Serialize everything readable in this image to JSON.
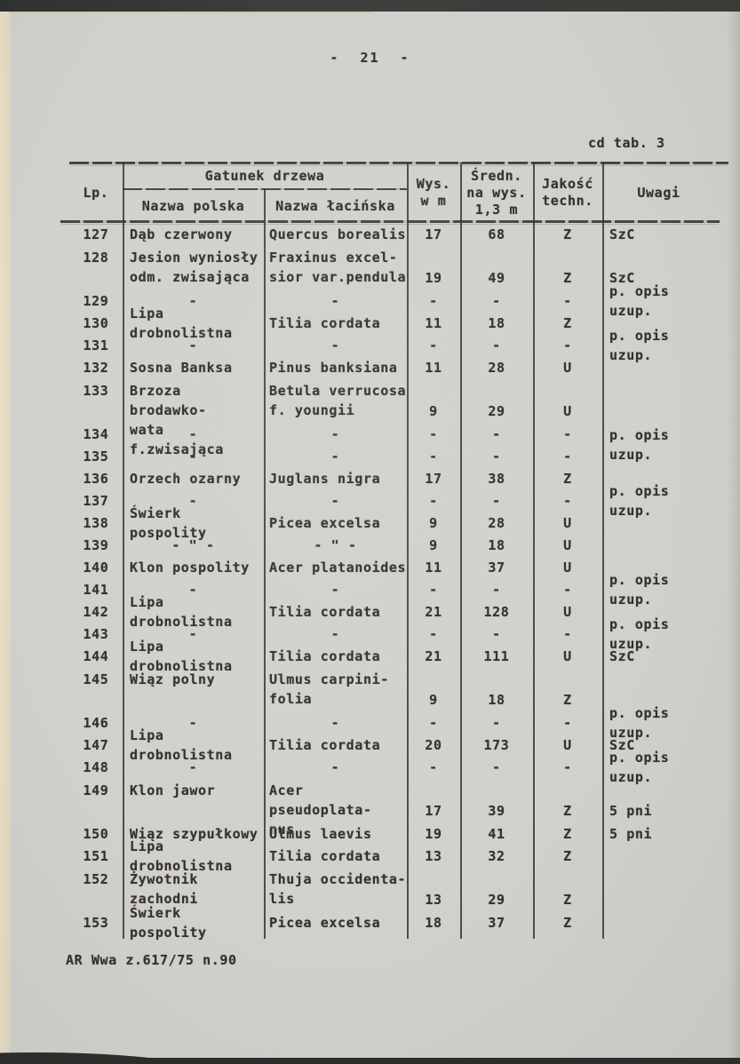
{
  "page": {
    "number_label": "- 21 -",
    "table_caption": "cd tab. 3",
    "footer": "AR Wwa z.617/75 n.90"
  },
  "colors": {
    "paper": "#d3d2ce",
    "ink": "#34312b",
    "edge_cream": "#e9e1c6",
    "scan_border": "#323130"
  },
  "table": {
    "headers": {
      "lp": "Lp.",
      "group": "Gatunek drzewa",
      "polish": "Nazwa polska",
      "latin": "Nazwa łacińska",
      "height": [
        "Wys.",
        "w m"
      ],
      "diameter": [
        "Średn.",
        "na wys.",
        "1,3 m"
      ],
      "quality": [
        "Jakość",
        "techn."
      ],
      "notes": "Uwagi"
    },
    "rows": [
      {
        "lp": "127",
        "polish": "Dąb czerwony",
        "latin": "Quercus borealis",
        "wys": "17",
        "sredn": "68",
        "jakosc": "Z",
        "uwagi": "SzC"
      },
      {
        "lp": "128",
        "polish": "Jesion wyniosły\nodm. zwisająca",
        "latin": "Fraxinus excel-\nsior var.pendula",
        "wys": "19",
        "sredn": "49",
        "jakosc": "Z",
        "uwagi": "SzC",
        "tall": true
      },
      {
        "lp": "129",
        "polish": "-",
        "latin": "-",
        "wys": "-",
        "sredn": "-",
        "jakosc": "-",
        "uwagi": "p. opis uzup."
      },
      {
        "lp": "130",
        "polish": "Lipa drobnolistna",
        "latin": "Tilia cordata",
        "wys": "11",
        "sredn": "18",
        "jakosc": "Z",
        "uwagi": ""
      },
      {
        "lp": "131",
        "polish": "-",
        "latin": "-",
        "wys": "-",
        "sredn": "-",
        "jakosc": "-",
        "uwagi": "p. opis uzup."
      },
      {
        "lp": "132",
        "polish": "Sosna Banksa",
        "latin": "Pinus banksiana",
        "wys": "11",
        "sredn": "28",
        "jakosc": "U",
        "uwagi": ""
      },
      {
        "lp": "133",
        "polish": "Brzoza brodawko-\nwata f.zwisająca",
        "latin": "Betula verrucosa\nf. youngii",
        "wys": "9",
        "sredn": "29",
        "jakosc": "U",
        "uwagi": "",
        "tall": true
      },
      {
        "lp": "134",
        "polish": "-",
        "latin": "-",
        "wys": "-",
        "sredn": "-",
        "jakosc": "-",
        "uwagi": "p. opis uzup.",
        "uwagi_span": 2
      },
      {
        "lp": "135",
        "polish": "-",
        "latin": "-",
        "wys": "-",
        "sredn": "-",
        "jakosc": "-",
        "uwagi": null
      },
      {
        "lp": "136",
        "polish": "Orzech ozarny",
        "latin": "Juglans nigra",
        "wys": "17",
        "sredn": "38",
        "jakosc": "Z",
        "uwagi": ""
      },
      {
        "lp": "137",
        "polish": "-",
        "latin": "-",
        "wys": "-",
        "sredn": "-",
        "jakosc": "-",
        "uwagi": "p. opis uzup."
      },
      {
        "lp": "138",
        "polish": "Świerk pospolity",
        "latin": "Picea excelsa",
        "wys": "9",
        "sredn": "28",
        "jakosc": "U",
        "uwagi": ""
      },
      {
        "lp": "139",
        "polish": "- \" -",
        "latin": "- \" -",
        "wys": "9",
        "sredn": "18",
        "jakosc": "U",
        "uwagi": ""
      },
      {
        "lp": "140",
        "polish": "Klon pospolity",
        "latin": "Acer platanoides",
        "wys": "11",
        "sredn": "37",
        "jakosc": "U",
        "uwagi": ""
      },
      {
        "lp": "141",
        "polish": "-",
        "latin": "-",
        "wys": "-",
        "sredn": "-",
        "jakosc": "-",
        "uwagi": "p. opis uzup."
      },
      {
        "lp": "142",
        "polish": "Lipa drobnolistna",
        "latin": "Tilia cordata",
        "wys": "21",
        "sredn": "128",
        "jakosc": "U",
        "uwagi": ""
      },
      {
        "lp": "143",
        "polish": "-",
        "latin": "-",
        "wys": "-",
        "sredn": "-",
        "jakosc": "-",
        "uwagi": "p. opis uzup."
      },
      {
        "lp": "144",
        "polish": "Lipa drobnolistna",
        "latin": "Tilia cordata",
        "wys": "21",
        "sredn": "111",
        "jakosc": "U",
        "uwagi": "SzC"
      },
      {
        "lp": "145",
        "polish": "Wiąz polny",
        "latin": "Ulmus carpini-\nfolia",
        "wys": "9",
        "sredn": "18",
        "jakosc": "Z",
        "uwagi": "",
        "tall": true
      },
      {
        "lp": "146",
        "polish": "-",
        "latin": "-",
        "wys": "-",
        "sredn": "-",
        "jakosc": "-",
        "uwagi": "p. opis uzup."
      },
      {
        "lp": "147",
        "polish": "Lipa drobnolistna",
        "latin": "Tilia cordata",
        "wys": "20",
        "sredn": "173",
        "jakosc": "U",
        "uwagi": "SzC"
      },
      {
        "lp": "148",
        "polish": "-",
        "latin": "-",
        "wys": "-",
        "sredn": "-",
        "jakosc": "-",
        "uwagi": "p. opis uzup."
      },
      {
        "lp": "149",
        "polish": "Klon jawor",
        "latin": "Acer pseudoplata-\nnus",
        "wys": "17",
        "sredn": "39",
        "jakosc": "Z",
        "uwagi": "5 pni",
        "tall": true
      },
      {
        "lp": "150",
        "polish": "Wiąz szypułkowy",
        "latin": "Ulmus laevis",
        "wys": "19",
        "sredn": "41",
        "jakosc": "Z",
        "uwagi": "5 pni"
      },
      {
        "lp": "151",
        "polish": "Lipa drobnolistna",
        "latin": "Tilia cordata",
        "wys": "13",
        "sredn": "32",
        "jakosc": "Z",
        "uwagi": ""
      },
      {
        "lp": "152",
        "polish": "Żywotnik zachodni",
        "latin": "Thuja occidenta-\nlis",
        "wys": "13",
        "sredn": "29",
        "jakosc": "Z",
        "uwagi": "",
        "tall": true
      },
      {
        "lp": "153",
        "polish": "Świerk pospolity",
        "latin": "Picea excelsa",
        "wys": "18",
        "sredn": "37",
        "jakosc": "Z",
        "uwagi": ""
      }
    ]
  }
}
